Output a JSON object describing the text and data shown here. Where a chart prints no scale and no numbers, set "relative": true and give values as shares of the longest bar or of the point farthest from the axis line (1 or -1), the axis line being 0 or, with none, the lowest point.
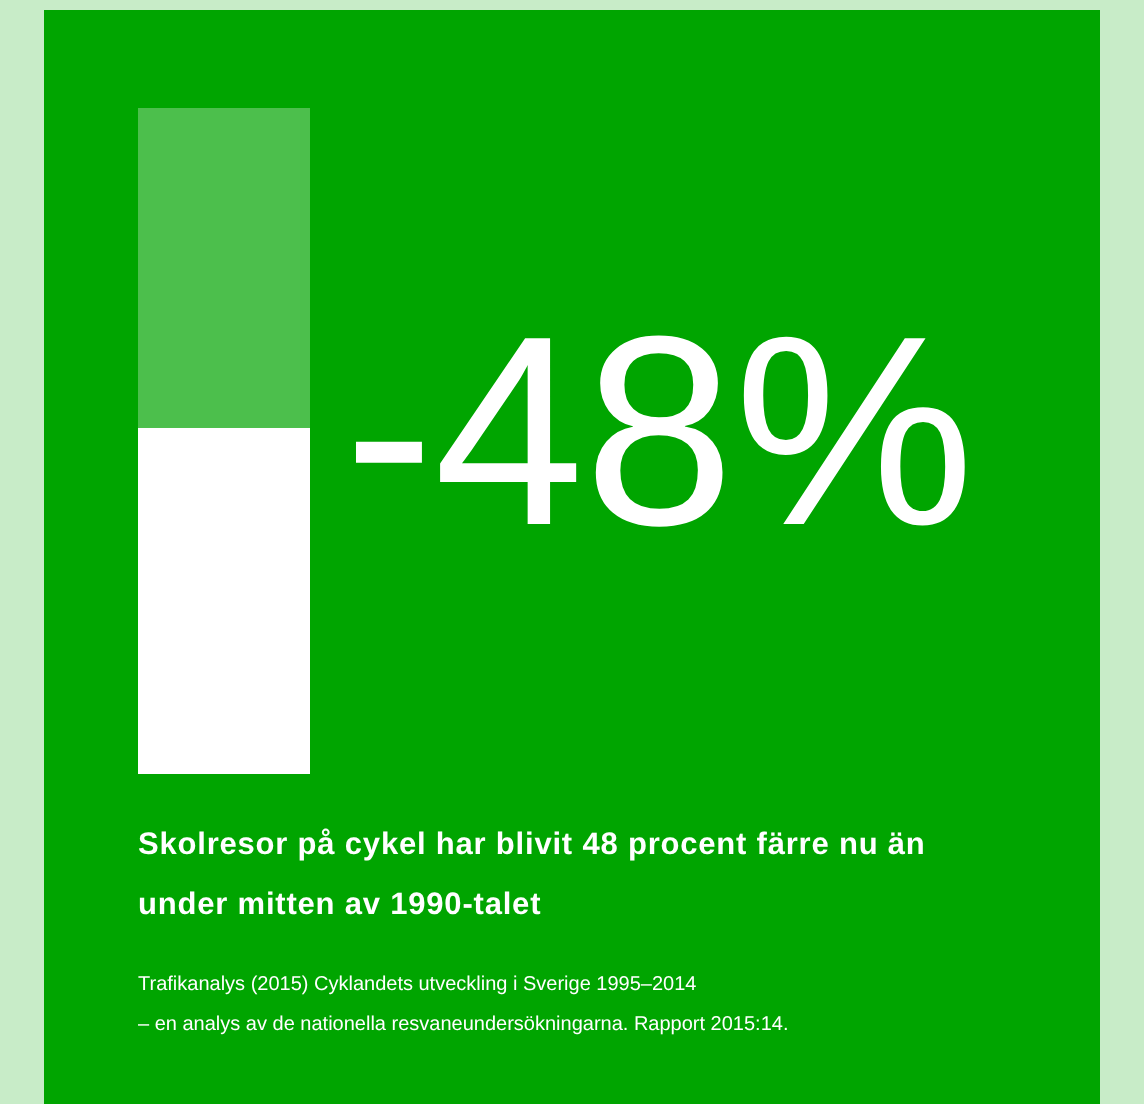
{
  "chart_data": {
    "type": "bar",
    "stacked": true,
    "relative": true,
    "categories": [
      null
    ],
    "series": [
      {
        "color": "#ffffff",
        "values": [
          0.52
        ]
      },
      {
        "color": "#4cbf4c",
        "values": [
          0.48
        ]
      }
    ],
    "title": "Skolresor på cykel har blivit 48 procent färre nu än under mitten av 1990-talet",
    "annotations": [
      "-48%",
      "Trafikanalys (2015) Cyklandets utveckling i Sverige 1995–2014",
      "– en analys av de nationella resvaneundersökningarna. Rapport 2015:14."
    ]
  }
}
